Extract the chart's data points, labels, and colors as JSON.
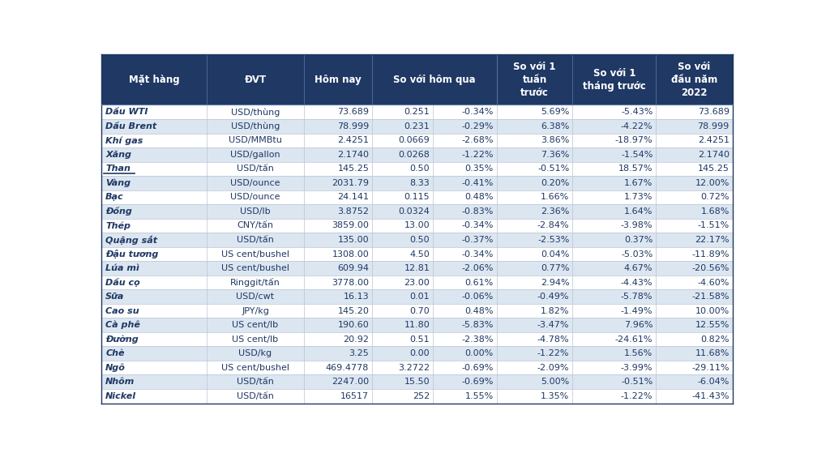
{
  "headers_line1": [
    "Mặt hàng",
    "ĐVT",
    "Hôm nay",
    "So với hôm qua",
    "",
    "So với 1\ntuần\ntrước",
    "So với 1\ntháng trước",
    "So với\nđầu năm\n2022"
  ],
  "rows": [
    [
      "Dầu WTI",
      "USD/thùng",
      "73.689",
      "0.251",
      "-0.34%",
      "5.69%",
      "-5.43%",
      "73.689"
    ],
    [
      "Dầu Brent",
      "USD/thùng",
      "78.999",
      "0.231",
      "-0.29%",
      "6.38%",
      "-4.22%",
      "78.999"
    ],
    [
      "Khí gas",
      "USD/MMBtu",
      "2.4251",
      "0.0669",
      "-2.68%",
      "3.86%",
      "-18.97%",
      "2.4251"
    ],
    [
      "Xăng",
      "USD/gallon",
      "2.1740",
      "0.0268",
      "-1.22%",
      "7.36%",
      "-1.54%",
      "2.1740"
    ],
    [
      "Than",
      "USD/tấn",
      "145.25",
      "0.50",
      "0.35%",
      "-0.51%",
      "18.57%",
      "145.25"
    ],
    [
      "Vàng",
      "USD/ounce",
      "2031.79",
      "8.33",
      "-0.41%",
      "0.20%",
      "1.67%",
      "12.00%"
    ],
    [
      "Bạc",
      "USD/ounce",
      "24.141",
      "0.115",
      "0.48%",
      "1.66%",
      "1.73%",
      "0.72%"
    ],
    [
      "Đồng",
      "USD/lb",
      "3.8752",
      "0.0324",
      "-0.83%",
      "2.36%",
      "1.64%",
      "1.68%"
    ],
    [
      "Thép",
      "CNY/tấn",
      "3859.00",
      "13.00",
      "-0.34%",
      "-2.84%",
      "-3.98%",
      "-1.51%"
    ],
    [
      "Quặng sắt",
      "USD/tấn",
      "135.00",
      "0.50",
      "-0.37%",
      "-2.53%",
      "0.37%",
      "22.17%"
    ],
    [
      "Đậu tương",
      "US cent/bushel",
      "1308.00",
      "4.50",
      "-0.34%",
      "0.04%",
      "-5.03%",
      "-11.89%"
    ],
    [
      "Lúa mì",
      "US cent/bushel",
      "609.94",
      "12.81",
      "-2.06%",
      "0.77%",
      "4.67%",
      "-20.56%"
    ],
    [
      "Dầu cọ",
      "Ringgit/tấn",
      "3778.00",
      "23.00",
      "0.61%",
      "2.94%",
      "-4.43%",
      "-4.60%"
    ],
    [
      "Sữa",
      "USD/cwt",
      "16.13",
      "0.01",
      "-0.06%",
      "-0.49%",
      "-5.78%",
      "-21.58%"
    ],
    [
      "Cao su",
      "JPY/kg",
      "145.20",
      "0.70",
      "0.48%",
      "1.82%",
      "-1.49%",
      "10.00%"
    ],
    [
      "Cà phê",
      "US cent/lb",
      "190.60",
      "11.80",
      "-5.83%",
      "-3.47%",
      "7.96%",
      "12.55%"
    ],
    [
      "Đường",
      "US cent/lb",
      "20.92",
      "0.51",
      "-2.38%",
      "-4.78%",
      "-24.61%",
      "0.82%"
    ],
    [
      "Chè",
      "USD/kg",
      "3.25",
      "0.00",
      "0.00%",
      "-1.22%",
      "1.56%",
      "11.68%"
    ],
    [
      "Ngô",
      "US cent/bushel",
      "469.4778",
      "3.2722",
      "-0.69%",
      "-2.09%",
      "-3.99%",
      "-29.11%"
    ],
    [
      "Nhôm",
      "USD/tấn",
      "2247.00",
      "15.50",
      "-0.69%",
      "5.00%",
      "-0.51%",
      "-6.04%"
    ],
    [
      "Nickel",
      "USD/tấn",
      "16517",
      "252",
      "1.55%",
      "1.35%",
      "-1.22%",
      "-41.43%"
    ]
  ],
  "underlined_rows": [
    4
  ],
  "header_bg": "#1f3864",
  "header_text": "#ffffff",
  "row_bg_even": "#dce6f1",
  "row_bg_odd": "#ffffff",
  "text_color": "#1f3864",
  "figsize": [
    10.04,
    5.59
  ],
  "dpi": 100
}
